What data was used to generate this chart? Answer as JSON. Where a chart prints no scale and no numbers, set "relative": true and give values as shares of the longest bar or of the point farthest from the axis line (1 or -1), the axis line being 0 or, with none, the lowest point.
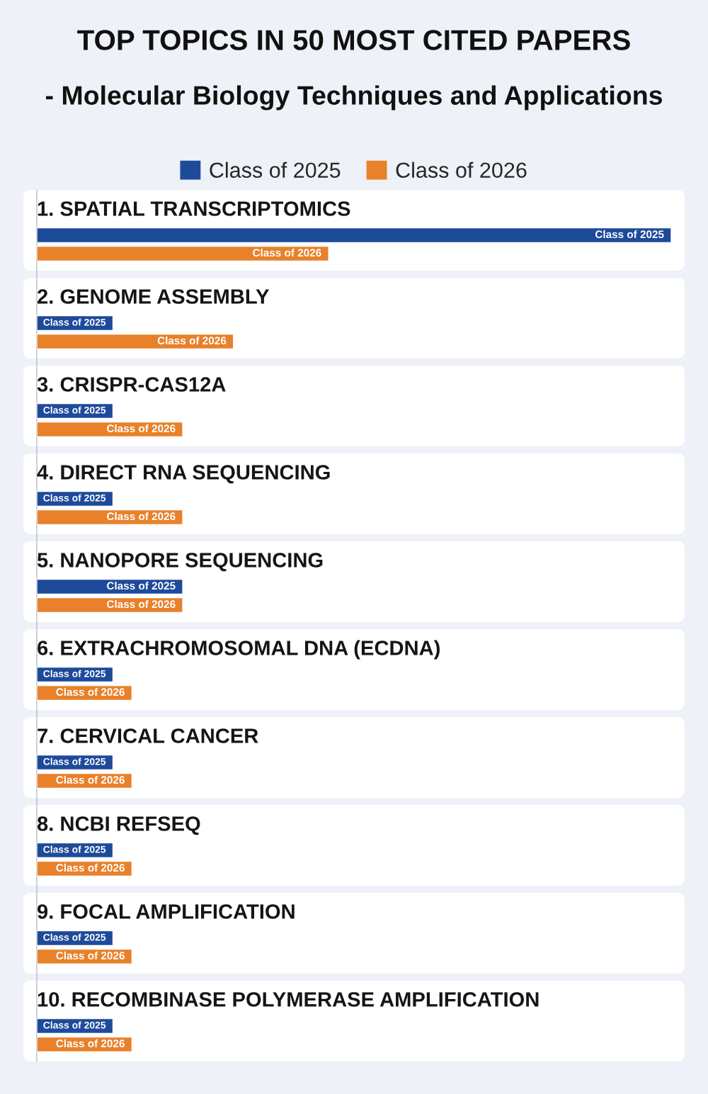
{
  "chart_data": {
    "type": "bar",
    "orientation": "horizontal",
    "relative": true,
    "title": "TOP TOPICS IN 50 MOST CITED PAPERS",
    "subtitle": "- Molecular Biology Techniques and Applications",
    "categories": [
      "1. SPATIAL TRANSCRIPTOMICS",
      "2. GENOME ASSEMBLY",
      "3. CRISPR-CAS12A",
      "4. DIRECT RNA SEQUENCING",
      "5. NANOPORE SEQUENCING",
      "6. EXTRACHROMOSOMAL DNA (ECDNA)",
      "7. CERVICAL CANCER",
      "8. NCBI REFSEQ",
      "9. FOCAL AMPLIFICATION",
      "10. RECOMBINASE POLYMERASE AMPLIFICATION"
    ],
    "series": [
      {
        "name": "Class of 2025",
        "color": "#1e4a9a",
        "values": [
          1.0,
          0.12,
          0.12,
          0.12,
          0.23,
          0.12,
          0.12,
          0.12,
          0.12,
          0.12
        ]
      },
      {
        "name": "Class of 2026",
        "color": "#e8812a",
        "values": [
          0.46,
          0.31,
          0.23,
          0.23,
          0.23,
          0.15,
          0.15,
          0.15,
          0.15,
          0.15
        ]
      }
    ],
    "legend": "top"
  }
}
